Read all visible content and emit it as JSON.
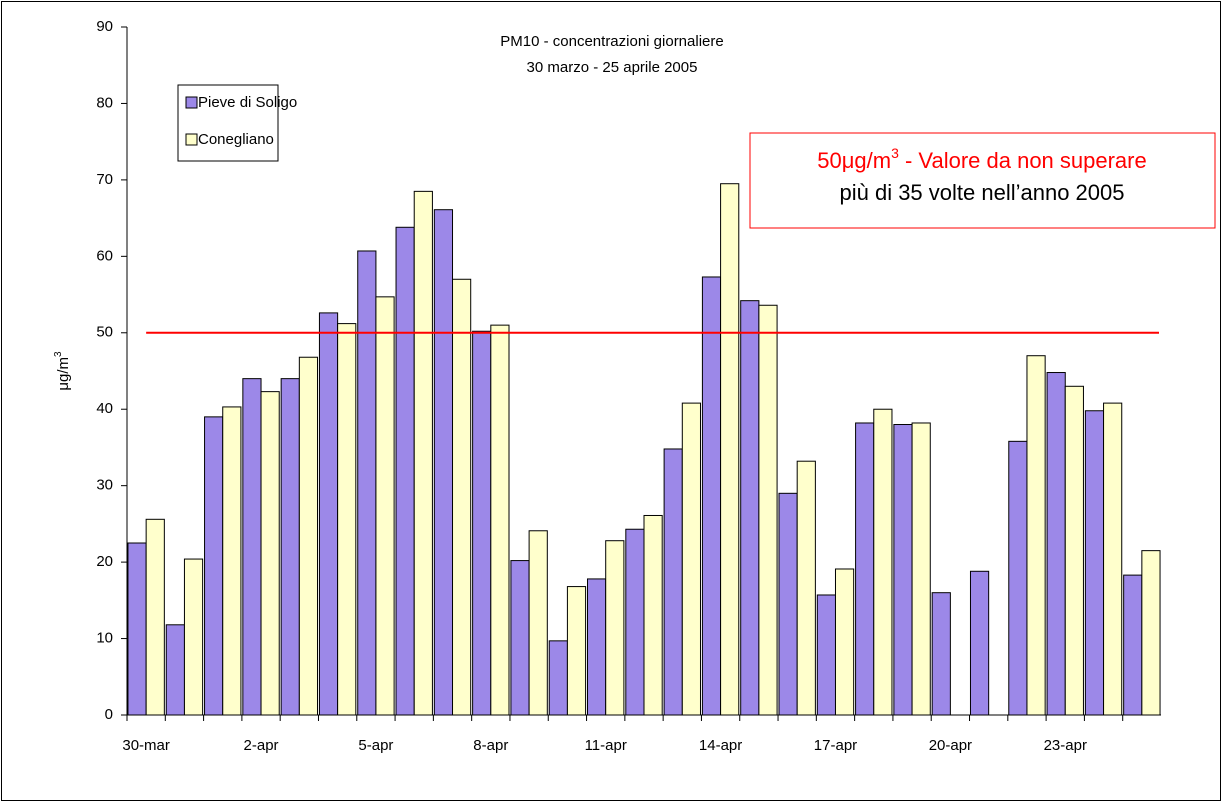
{
  "chart_data": {
    "type": "bar",
    "title": [
      "PM10 - concentrazioni giornaliere",
      "30 marzo - 25 aprile 2005"
    ],
    "y_label": {
      "text": "μg/m",
      "sup": "3"
    },
    "categories": [
      "30-mar",
      null,
      null,
      "2-apr",
      null,
      null,
      "5-apr",
      null,
      null,
      "8-apr",
      null,
      null,
      "11-apr",
      null,
      null,
      "14-apr",
      null,
      null,
      "17-apr",
      null,
      null,
      "20-apr",
      null,
      null,
      "23-apr",
      null,
      null
    ],
    "series": [
      {
        "name": "Pieve di Soligo",
        "color": "#9c88e8",
        "values": [
          22.5,
          11.8,
          39,
          44,
          44,
          52.6,
          60.7,
          63.8,
          66.1,
          50.2,
          20.2,
          9.7,
          17.8,
          24.3,
          34.8,
          57.3,
          54.2,
          29,
          15.7,
          38.2,
          38,
          16,
          18.8,
          35.8,
          44.8,
          39.8,
          18.3
        ]
      },
      {
        "name": "Conegliano",
        "color": "#ffffcc",
        "values": [
          25.6,
          20.4,
          40.3,
          42.3,
          46.8,
          51.2,
          54.7,
          68.5,
          57,
          51,
          24.1,
          16.8,
          22.8,
          26.1,
          40.8,
          69.5,
          53.6,
          33.2,
          19.1,
          40,
          38.2,
          null,
          null,
          47,
          43,
          40.8,
          21.5
        ]
      }
    ],
    "ylim": [
      0,
      90
    ],
    "yticks": [
      0,
      10,
      20,
      30,
      40,
      50,
      60,
      70,
      80,
      90
    ],
    "reference_line": {
      "value": 50,
      "color": "#ff0000"
    },
    "annotation": {
      "lead": "50μg/m",
      "sup": "3",
      "rest": " - Valore da non superare",
      "line2": "più di 35 volte nell’anno 2005",
      "color": "#ff0000"
    }
  }
}
